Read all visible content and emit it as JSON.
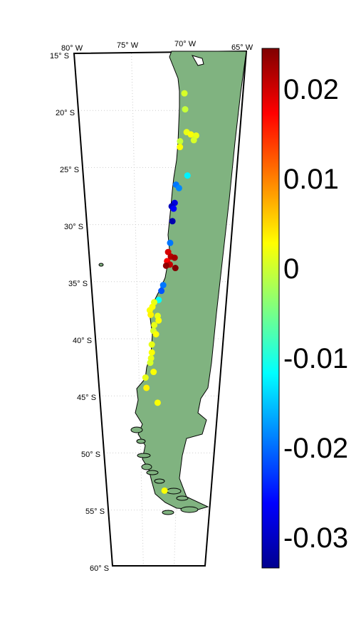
{
  "map": {
    "lon_labels": [
      "80° W",
      "75° W",
      "70° W",
      "65° W"
    ],
    "lat_labels": [
      "15° S",
      "20° S",
      "25° S",
      "30° S",
      "35° S",
      "40° S",
      "45° S",
      "50° S",
      "55° S",
      "60° S"
    ],
    "land_color": "#80b380",
    "grid": true
  },
  "colorbar": {
    "ticks": [
      "0.02",
      "0.01",
      "0",
      "-0.01",
      "-0.02",
      "-0.03"
    ],
    "range": [
      -0.034,
      0.024
    ]
  },
  "chart_data": {
    "type": "scatter",
    "xlabel": "",
    "ylabel": "",
    "points": [
      {
        "lon": -70.3,
        "lat": -18.5,
        "value": 0.0
      },
      {
        "lon": -70.2,
        "lat": -19.9,
        "value": -0.001
      },
      {
        "lon": -70.0,
        "lat": -21.9,
        "value": 0.001
      },
      {
        "lon": -69.6,
        "lat": -22.1,
        "value": 0.002
      },
      {
        "lon": -69.1,
        "lat": -22.2,
        "value": 0.001
      },
      {
        "lon": -69.3,
        "lat": -22.6,
        "value": 0.0
      },
      {
        "lon": -70.6,
        "lat": -22.7,
        "value": -0.001
      },
      {
        "lon": -70.6,
        "lat": -23.2,
        "value": 0.002
      },
      {
        "lon": -69.8,
        "lat": -25.7,
        "value": -0.013
      },
      {
        "lon": -70.9,
        "lat": -26.5,
        "value": -0.02
      },
      {
        "lon": -70.6,
        "lat": -26.8,
        "value": -0.019
      },
      {
        "lon": -71.0,
        "lat": -28.1,
        "value": -0.029
      },
      {
        "lon": -71.3,
        "lat": -28.4,
        "value": -0.031
      },
      {
        "lon": -71.1,
        "lat": -28.6,
        "value": -0.027
      },
      {
        "lon": -71.2,
        "lat": -29.7,
        "value": -0.032
      },
      {
        "lon": -71.4,
        "lat": -31.6,
        "value": -0.02
      },
      {
        "lon": -71.6,
        "lat": -32.4,
        "value": 0.019
      },
      {
        "lon": -71.3,
        "lat": -32.8,
        "value": 0.021
      },
      {
        "lon": -70.9,
        "lat": -32.9,
        "value": 0.022
      },
      {
        "lon": -71.7,
        "lat": -33.2,
        "value": 0.017
      },
      {
        "lon": -71.4,
        "lat": -33.5,
        "value": 0.02
      },
      {
        "lon": -71.8,
        "lat": -33.6,
        "value": 0.023
      },
      {
        "lon": -70.8,
        "lat": -33.8,
        "value": 0.024
      },
      {
        "lon": -72.1,
        "lat": -35.3,
        "value": -0.02
      },
      {
        "lon": -72.3,
        "lat": -35.8,
        "value": -0.022
      },
      {
        "lon": -72.6,
        "lat": -36.6,
        "value": -0.012
      },
      {
        "lon": -73.1,
        "lat": -36.8,
        "value": 0.001
      },
      {
        "lon": -73.3,
        "lat": -37.2,
        "value": 0.002
      },
      {
        "lon": -73.6,
        "lat": -37.5,
        "value": 0.002
      },
      {
        "lon": -73.5,
        "lat": -37.9,
        "value": 0.003
      },
      {
        "lon": -72.7,
        "lat": -38.0,
        "value": 0.001
      },
      {
        "lon": -72.6,
        "lat": -38.4,
        "value": 0.002
      },
      {
        "lon": -73.1,
        "lat": -38.8,
        "value": 0.001
      },
      {
        "lon": -73.2,
        "lat": -39.3,
        "value": 0.0
      },
      {
        "lon": -72.9,
        "lat": -39.6,
        "value": 0.002
      },
      {
        "lon": -73.4,
        "lat": -40.5,
        "value": 0.001
      },
      {
        "lon": -73.4,
        "lat": -41.2,
        "value": 0.002
      },
      {
        "lon": -73.5,
        "lat": -41.7,
        "value": 0.001
      },
      {
        "lon": -73.6,
        "lat": -42.1,
        "value": 0.0
      },
      {
        "lon": -73.2,
        "lat": -42.9,
        "value": 0.002
      },
      {
        "lon": -74.2,
        "lat": -43.4,
        "value": 0.001
      },
      {
        "lon": -74.1,
        "lat": -44.3,
        "value": 0.003
      },
      {
        "lon": -72.7,
        "lat": -45.6,
        "value": 0.002
      },
      {
        "lon": -71.7,
        "lat": -53.3,
        "value": 0.002
      }
    ]
  }
}
